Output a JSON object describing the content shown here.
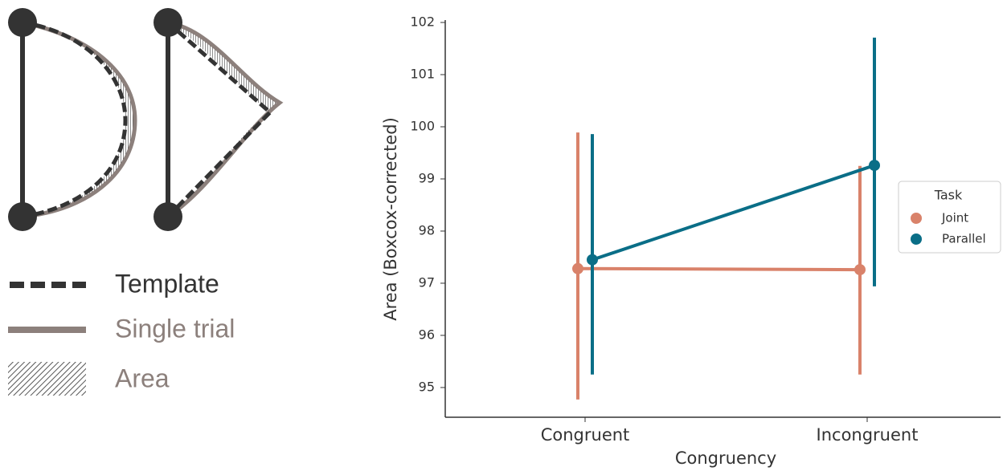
{
  "chart_data": {
    "type": "pointplot",
    "x_label": "Congruency",
    "y_label": "Area (Boxcox-corrected)",
    "categories": [
      "Congruent",
      "Incongruent"
    ],
    "legend_title": "Task",
    "legend_position": "right",
    "ylim": [
      94.43,
      102.05
    ],
    "yticks": [
      95,
      96,
      97,
      98,
      99,
      100,
      101,
      102
    ],
    "series": [
      {
        "name": "Joint",
        "color": "#d9826a",
        "values": [
          97.28,
          97.26
        ],
        "ci_low": [
          94.77,
          95.25
        ],
        "ci_high": [
          99.89,
          99.25
        ]
      },
      {
        "name": "Parallel",
        "color": "#0a6e87",
        "values": [
          97.45,
          99.26
        ],
        "ci_low": [
          95.25,
          96.94
        ],
        "ci_high": [
          99.86,
          101.71
        ]
      }
    ]
  },
  "legend_panel": {
    "items": [
      "Template",
      "Single trial",
      "Area"
    ]
  }
}
